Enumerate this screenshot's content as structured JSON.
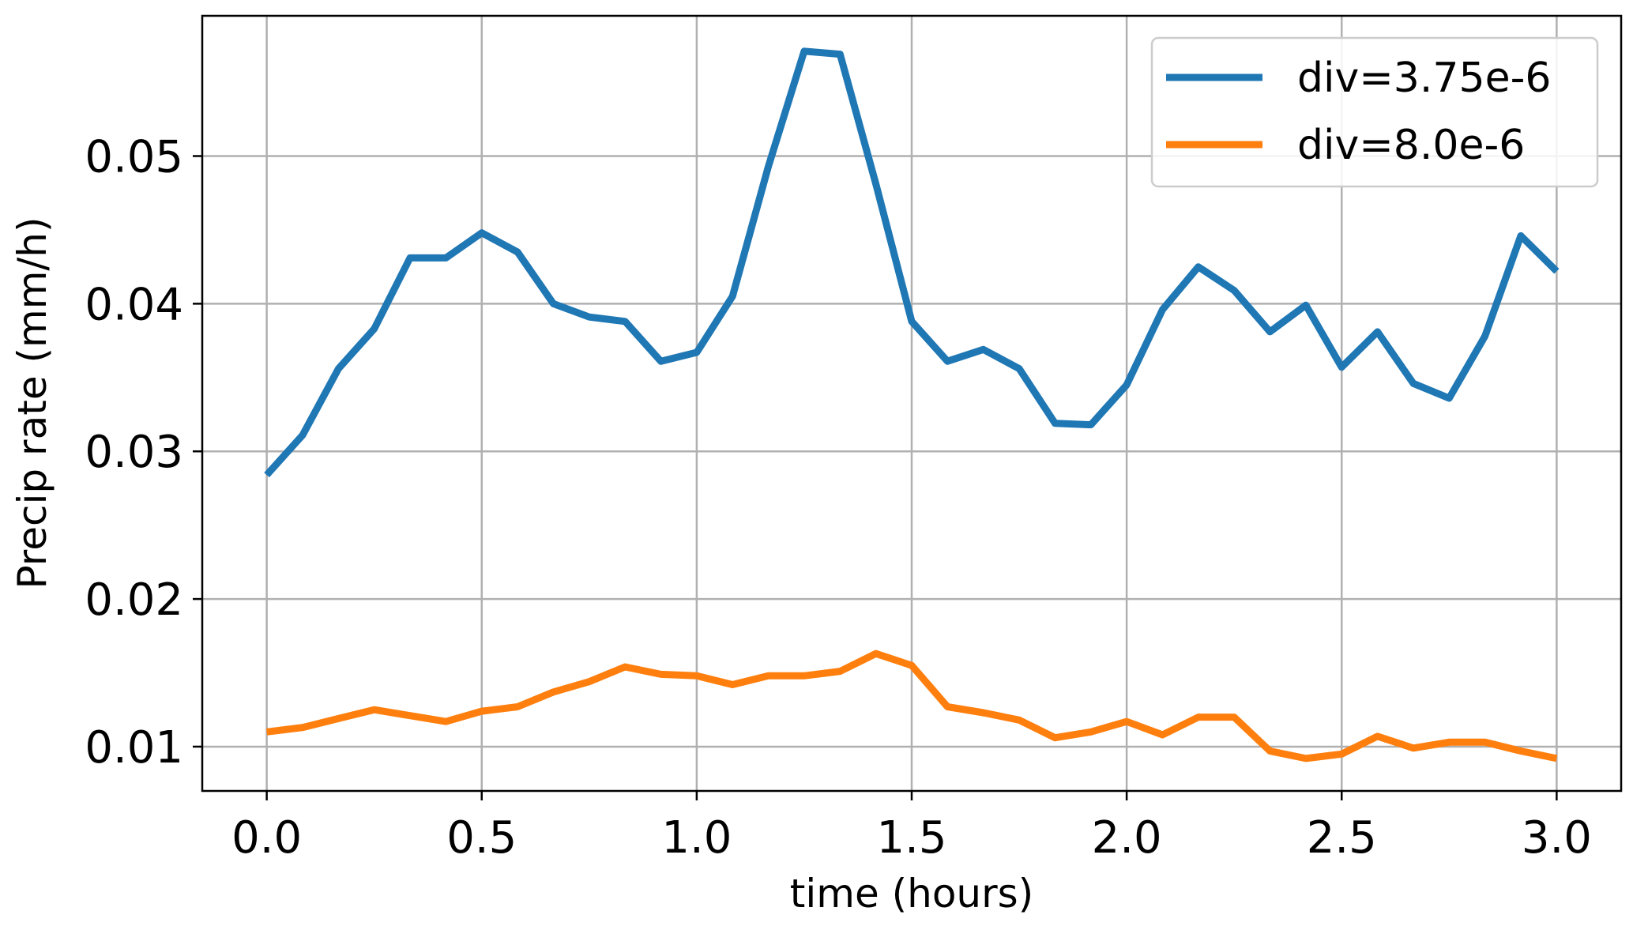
{
  "chart_data": {
    "type": "line",
    "title": "",
    "xlabel": "time (hours)",
    "ylabel": "Precip rate (mm/h)",
    "xlim": [
      -0.15,
      3.15
    ],
    "ylim": [
      0.007,
      0.0595
    ],
    "xticks": [
      0.0,
      0.5,
      1.0,
      1.5,
      2.0,
      2.5,
      3.0
    ],
    "xtick_labels": [
      "0.0",
      "0.5",
      "1.0",
      "1.5",
      "2.0",
      "2.5",
      "3.0"
    ],
    "yticks": [
      0.01,
      0.02,
      0.03,
      0.04,
      0.05
    ],
    "ytick_labels": [
      "0.01",
      "0.02",
      "0.03",
      "0.04",
      "0.05"
    ],
    "grid": true,
    "legend_position": "top-right",
    "x": [
      0.0,
      0.0833,
      0.1667,
      0.25,
      0.3333,
      0.4167,
      0.5,
      0.5833,
      0.6667,
      0.75,
      0.8333,
      0.9167,
      1.0,
      1.0833,
      1.1667,
      1.25,
      1.3333,
      1.4167,
      1.5,
      1.5833,
      1.6667,
      1.75,
      1.8333,
      1.9167,
      2.0,
      2.0833,
      2.1667,
      2.25,
      2.3333,
      2.4167,
      2.5,
      2.5833,
      2.6667,
      2.75,
      2.8333,
      2.9167,
      3.0
    ],
    "series": [
      {
        "name": "div=3.75e-6",
        "color": "#1f77b4",
        "values": [
          0.0284,
          0.0311,
          0.0356,
          0.0383,
          0.0431,
          0.0431,
          0.0448,
          0.0435,
          0.04,
          0.0391,
          0.0388,
          0.0361,
          0.0367,
          0.0405,
          0.0493,
          0.0571,
          0.0569,
          0.0481,
          0.0388,
          0.0361,
          0.0369,
          0.0356,
          0.0319,
          0.0318,
          0.0345,
          0.0396,
          0.0425,
          0.0409,
          0.0381,
          0.0399,
          0.0357,
          0.0381,
          0.0346,
          0.0336,
          0.0378,
          0.0446,
          0.0422
        ]
      },
      {
        "name": "div=8.0e-6",
        "color": "#ff7f0e",
        "values": [
          0.011,
          0.0113,
          0.0119,
          0.0125,
          0.0121,
          0.0117,
          0.0124,
          0.0127,
          0.0137,
          0.0144,
          0.0154,
          0.0149,
          0.0148,
          0.0142,
          0.0148,
          0.0148,
          0.0151,
          0.0163,
          0.0155,
          0.0127,
          0.0123,
          0.0118,
          0.0106,
          0.011,
          0.0117,
          0.0108,
          0.012,
          0.012,
          0.0097,
          0.0092,
          0.0095,
          0.0107,
          0.0099,
          0.0103,
          0.0103,
          0.0097,
          0.0092
        ]
      }
    ]
  }
}
